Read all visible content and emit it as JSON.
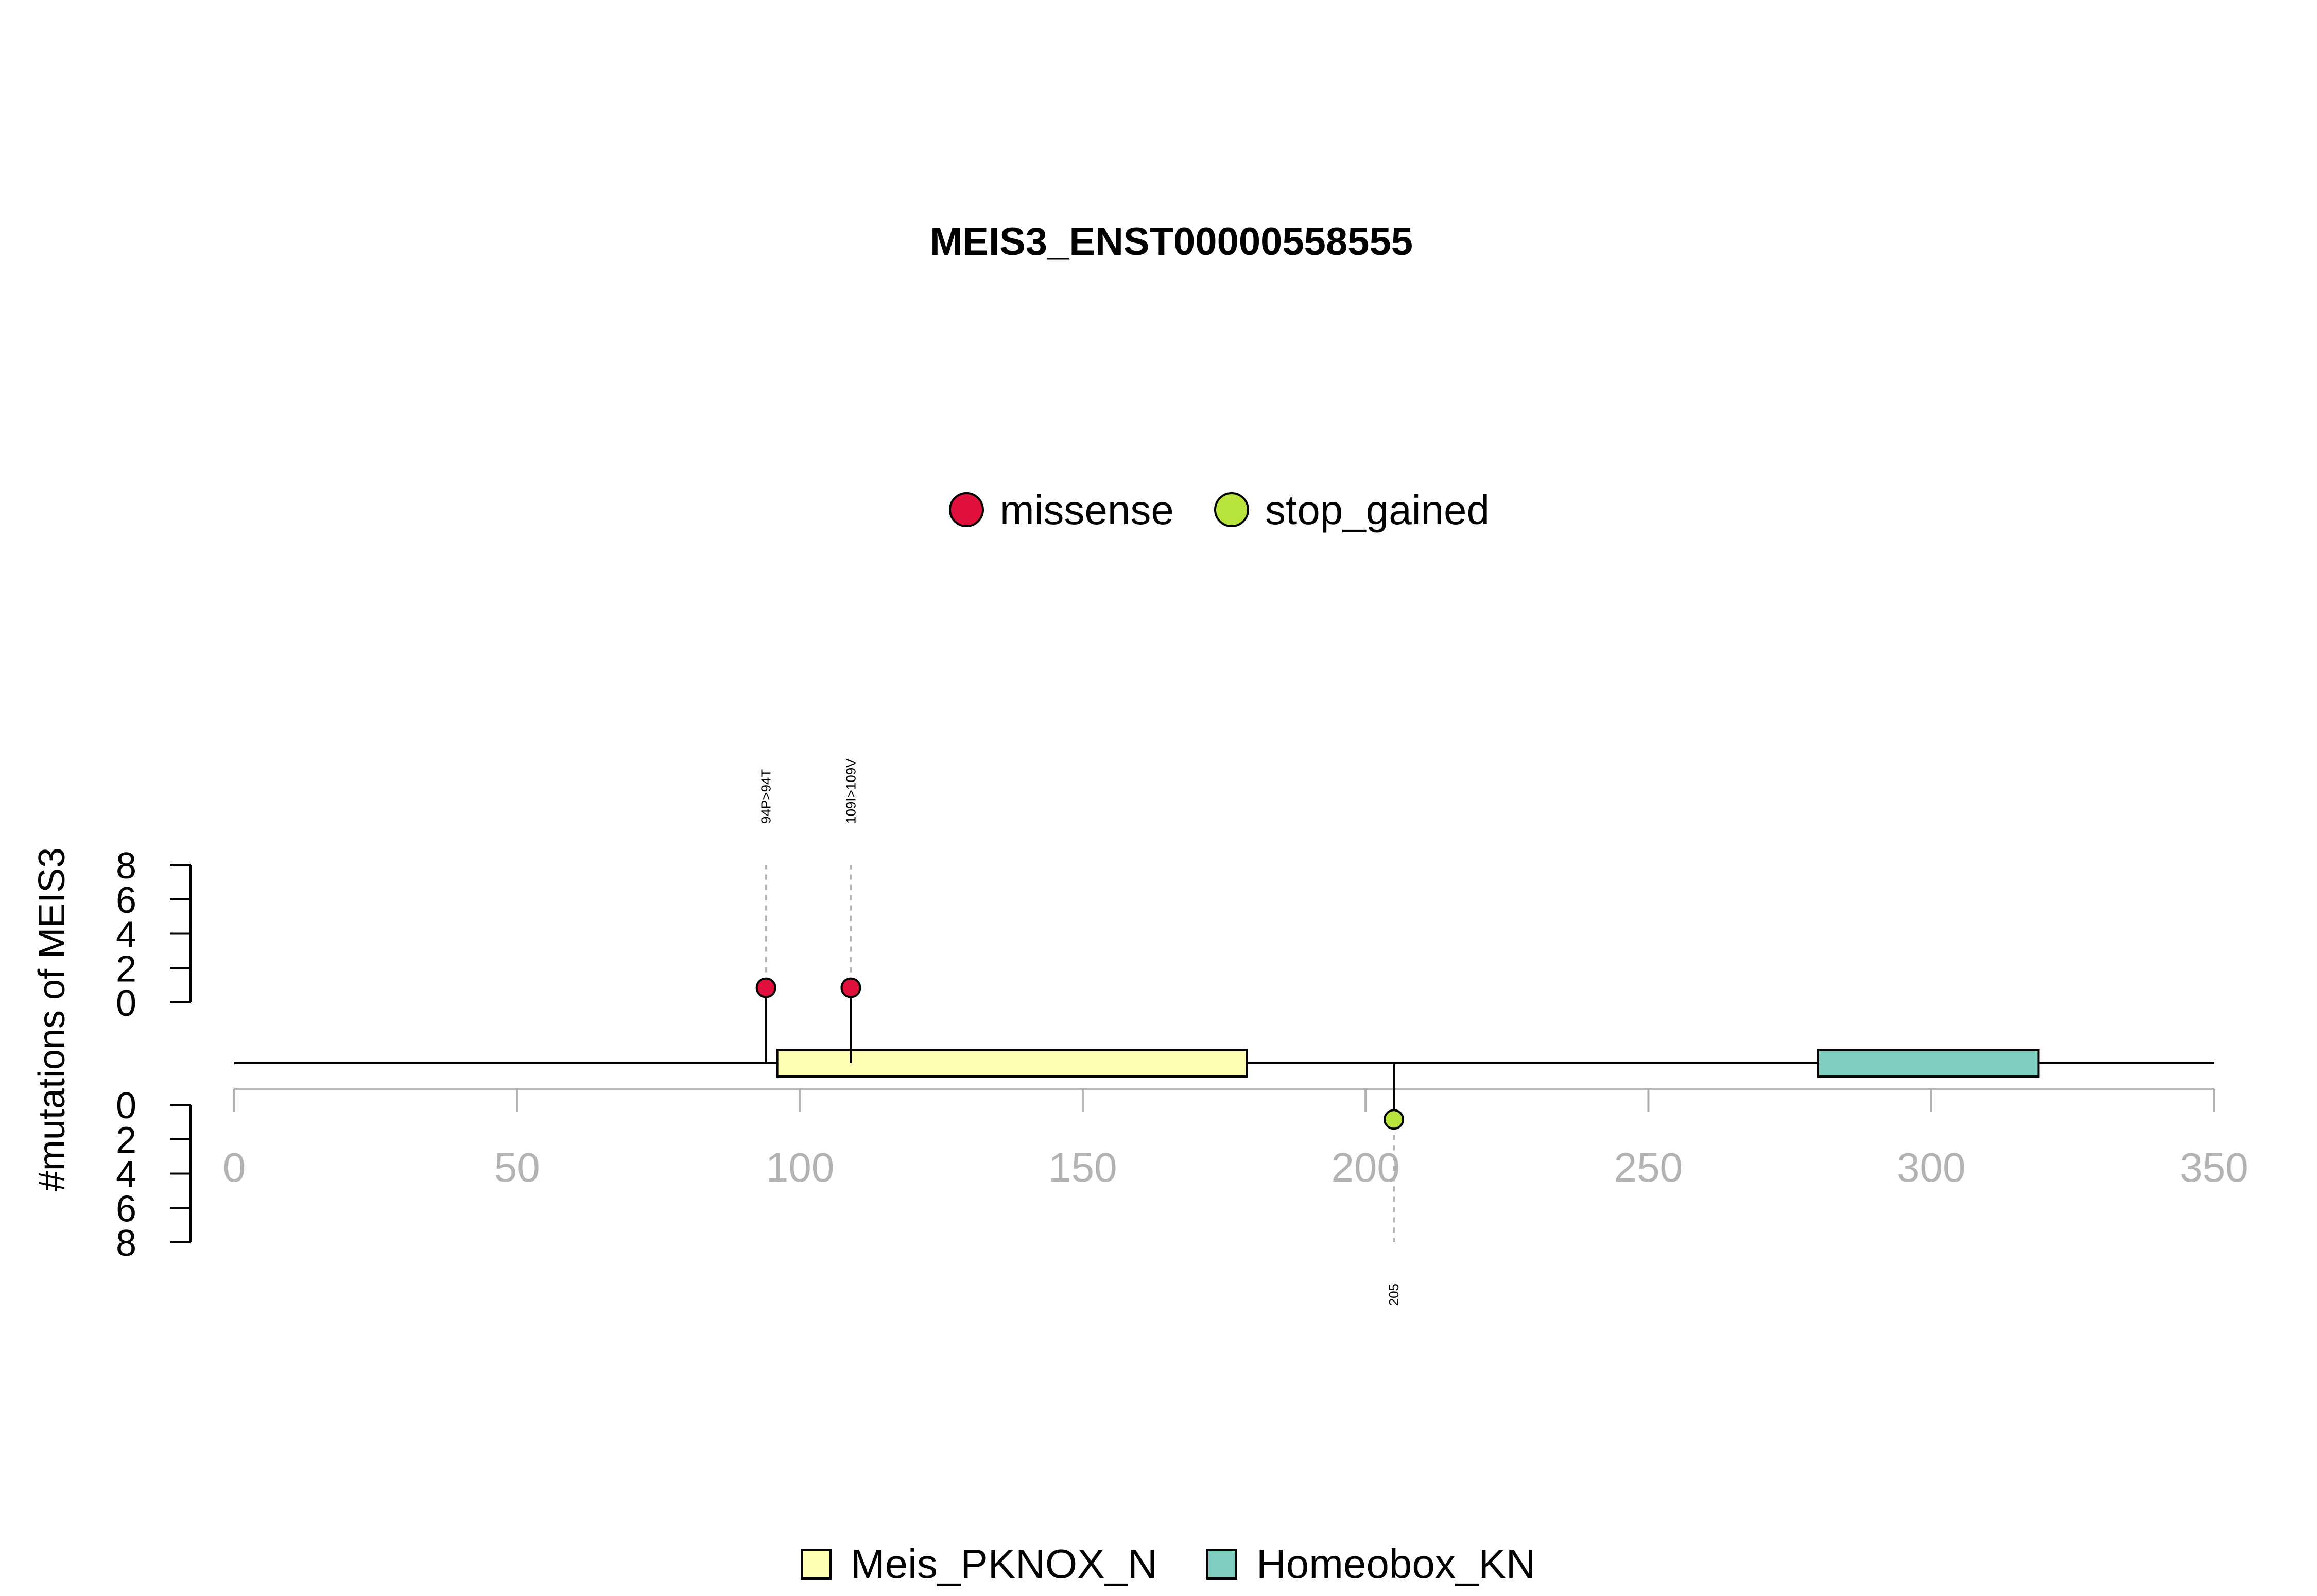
{
  "chart_data": {
    "type": "lollipop",
    "title": "MEIS3_ENST00000558555",
    "ylabel": "#mutations of MEIS3",
    "xlim": [
      0,
      350
    ],
    "x_ticks": [
      "0",
      "50",
      "100",
      "150",
      "200",
      "250",
      "300",
      "350"
    ],
    "y_ticks_top": [
      "8",
      "6",
      "4",
      "2",
      "0"
    ],
    "y_ticks_bottom": [
      "0",
      "2",
      "4",
      "6",
      "8"
    ],
    "ylim": [
      0,
      8
    ],
    "mutation_legend": [
      {
        "name": "missense",
        "color": "#e0103c"
      },
      {
        "name": "stop_gained",
        "color": "#b8e23c"
      }
    ],
    "mutations": [
      {
        "position": 94,
        "label": "94P>94T",
        "type": "missense",
        "count": 1,
        "side": "top",
        "color": "#e0103c"
      },
      {
        "position": 109,
        "label": "109I>109V",
        "type": "missense",
        "count": 1,
        "side": "top",
        "color": "#e0103c"
      },
      {
        "position": 205,
        "label": "205",
        "type": "stop_gained",
        "count": 1,
        "side": "bottom",
        "color": "#b8e23c"
      }
    ],
    "domains": [
      {
        "name": "Meis_PKNOX_N",
        "start": 96,
        "end": 179,
        "color": "#ffffb3"
      },
      {
        "name": "Homeobox_KN",
        "start": 280,
        "end": 319,
        "color": "#80cdc1"
      }
    ]
  }
}
